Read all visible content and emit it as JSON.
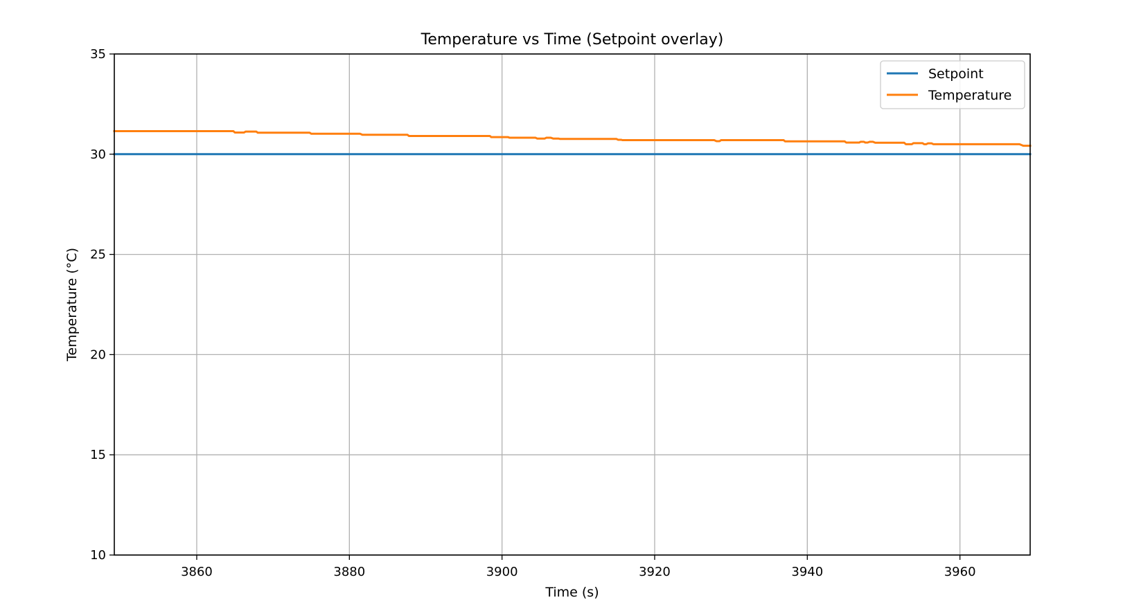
{
  "chart_data": {
    "type": "line",
    "title": "Temperature vs Time (Setpoint overlay)",
    "xlabel": "Time (s)",
    "ylabel": "Temperature (°C)",
    "xlim": [
      3849.2,
      3969.2
    ],
    "ylim": [
      10,
      35
    ],
    "xticks": [
      3860,
      3880,
      3900,
      3920,
      3940,
      3960
    ],
    "yticks": [
      10,
      15,
      20,
      25,
      30,
      35
    ],
    "grid": true,
    "legend_position": "upper right",
    "series": [
      {
        "name": "Setpoint",
        "color": "#1f77b4",
        "x": [
          3849.2,
          3969.2
        ],
        "y": [
          30.0,
          30.0
        ]
      },
      {
        "name": "Temperature",
        "color": "#ff7f0e",
        "x": [
          3849.2,
          3864.8,
          3865.0,
          3866.2,
          3866.4,
          3867.8,
          3868.0,
          3874.8,
          3875.0,
          3881.4,
          3881.7,
          3887.6,
          3887.8,
          3898.4,
          3898.6,
          3900.8,
          3901.0,
          3904.4,
          3904.6,
          3905.6,
          3905.8,
          3906.4,
          3906.7,
          3907.4,
          3907.6,
          3915.0,
          3915.2,
          3915.6,
          3915.8,
          3927.8,
          3928.1,
          3928.5,
          3928.7,
          3936.9,
          3937.1,
          3944.9,
          3945.1,
          3946.8,
          3947.0,
          3947.4,
          3947.6,
          3947.9,
          3948.2,
          3948.6,
          3948.9,
          3952.7,
          3952.9,
          3953.7,
          3953.9,
          3955.1,
          3955.3,
          3955.6,
          3955.8,
          3956.3,
          3956.5,
          3967.8,
          3968.3,
          3969.2
        ],
        "y": [
          31.15,
          31.15,
          31.08,
          31.08,
          31.13,
          31.13,
          31.07,
          31.07,
          31.02,
          31.02,
          30.97,
          30.97,
          30.91,
          30.91,
          30.85,
          30.85,
          30.82,
          30.82,
          30.78,
          30.78,
          30.82,
          30.82,
          30.78,
          30.78,
          30.76,
          30.76,
          30.72,
          30.72,
          30.7,
          30.7,
          30.65,
          30.65,
          30.7,
          30.7,
          30.64,
          30.64,
          30.58,
          30.58,
          30.62,
          30.62,
          30.58,
          30.58,
          30.62,
          30.62,
          30.57,
          30.57,
          30.5,
          30.5,
          30.55,
          30.55,
          30.5,
          30.5,
          30.54,
          30.54,
          30.5,
          30.5,
          30.42,
          30.42
        ]
      }
    ]
  }
}
